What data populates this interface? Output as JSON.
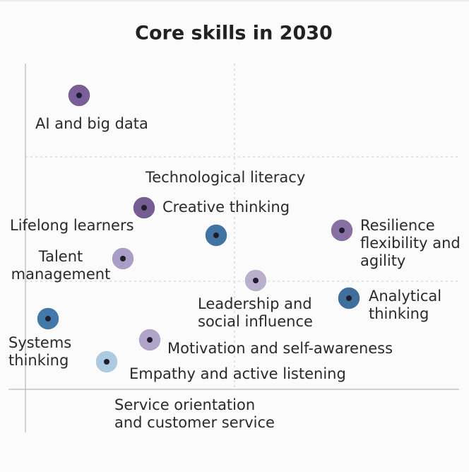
{
  "header": {
    "title": "Core skills in 2030"
  },
  "nodes": [
    {
      "label": [
        "AI and big data"
      ],
      "color": "#6a4c8c"
    },
    {
      "label": [
        "Technological literacy"
      ],
      "color": "#2d6599"
    },
    {
      "label": [
        "Creative thinking"
      ],
      "color": "#664a86"
    },
    {
      "label": [
        "Lifelong learners"
      ]
    },
    {
      "label": [
        "Talent",
        "management"
      ],
      "color": "#a193c2"
    },
    {
      "label": [
        "Resilience",
        "flexibility and",
        "agility"
      ],
      "color": "#7b6198"
    },
    {
      "label": [
        "Leadership and",
        "social influence"
      ],
      "color": "#b4a6c9"
    },
    {
      "label": [
        "Analytical",
        "thinking"
      ],
      "color": "#2b5f92"
    },
    {
      "label": [
        "Systems",
        "thinking"
      ],
      "color": "#2f6aa0"
    },
    {
      "label": [
        "Motivation and self-awareness"
      ],
      "color": "#a89ac3"
    },
    {
      "label": [
        "Empathy and active listening"
      ],
      "color": "#a3c5e0"
    },
    {
      "label": [
        "Service orientation",
        "and customer service"
      ]
    }
  ]
}
